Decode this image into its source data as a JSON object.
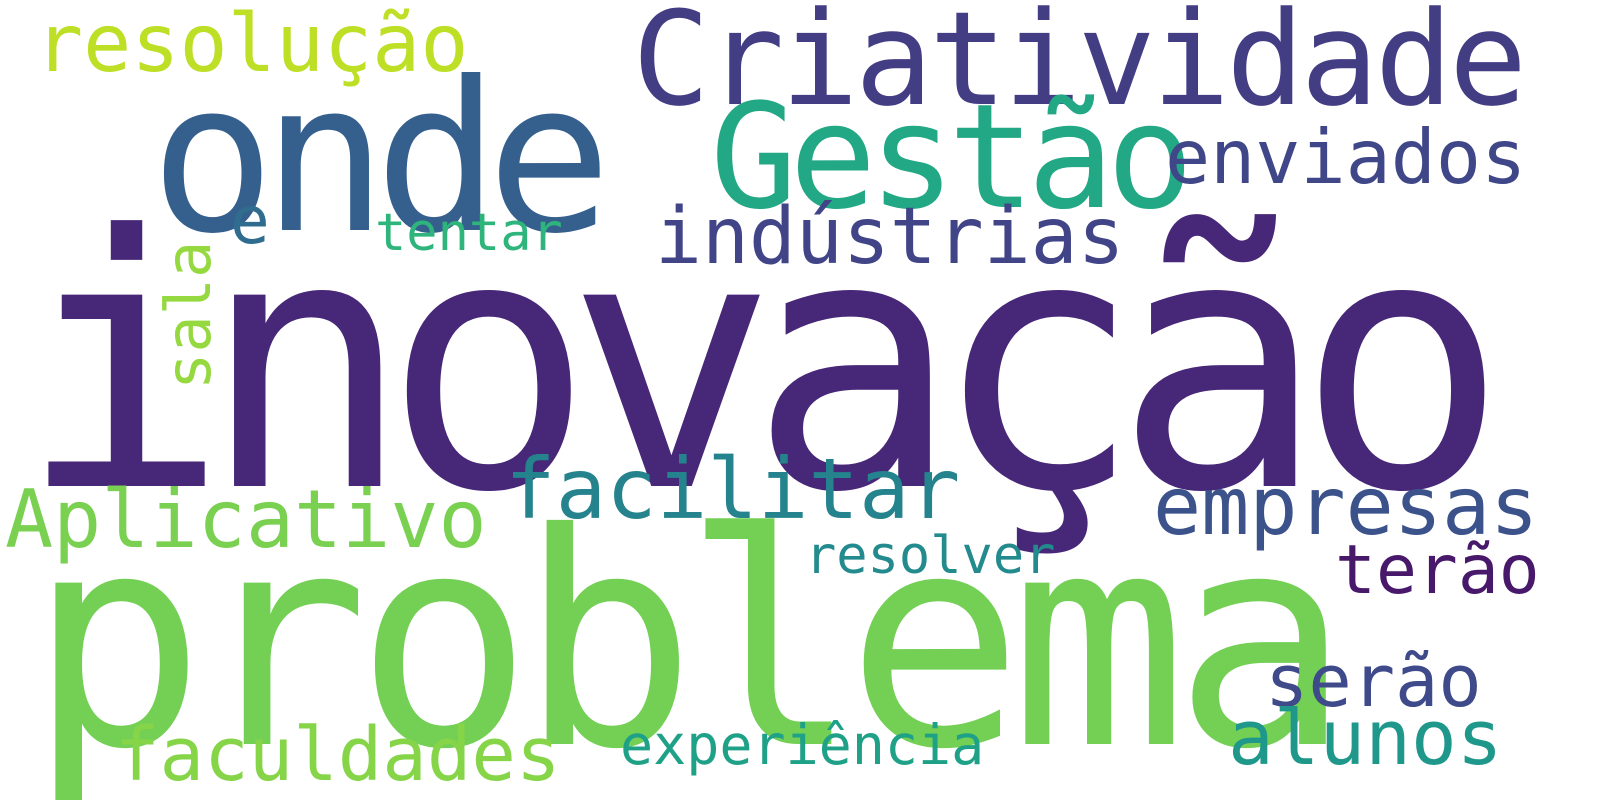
{
  "words": {
    "inovacao": {
      "text": "inovação",
      "color": "#472777"
    },
    "problema": {
      "text": "problema",
      "color": "#73d055"
    },
    "onde": {
      "text": "onde",
      "color": "#355f8d"
    },
    "criatividade": {
      "text": "Criatividade",
      "color": "#433d84"
    },
    "gestao": {
      "text": "Gestão",
      "color": "#22a884"
    },
    "resolucao": {
      "text": "resolução",
      "color": "#bddf26"
    },
    "enviados": {
      "text": "enviados",
      "color": "#3f4788"
    },
    "industrias": {
      "text": "indústrias",
      "color": "#414487"
    },
    "e": {
      "text": "e",
      "color": "#2f6c8e"
    },
    "tentar": {
      "text": "tentar",
      "color": "#2fb47c"
    },
    "sala": {
      "text": "sala",
      "color": "#95d840"
    },
    "facilitar": {
      "text": "facilitar",
      "color": "#25838e"
    },
    "empresas": {
      "text": "empresas",
      "color": "#3b528b"
    },
    "aplicativo": {
      "text": "Aplicativo",
      "color": "#7ad151"
    },
    "resolver": {
      "text": "resolver",
      "color": "#238a8d"
    },
    "terao": {
      "text": "terão",
      "color": "#48186a"
    },
    "serao": {
      "text": "serão",
      "color": "#3e4a89"
    },
    "faculdades": {
      "text": "faculdades",
      "color": "#86d549"
    },
    "experiencia": {
      "text": "experiência",
      "color": "#1fa188"
    },
    "alunos": {
      "text": "alunos",
      "color": "#1f988b"
    }
  }
}
